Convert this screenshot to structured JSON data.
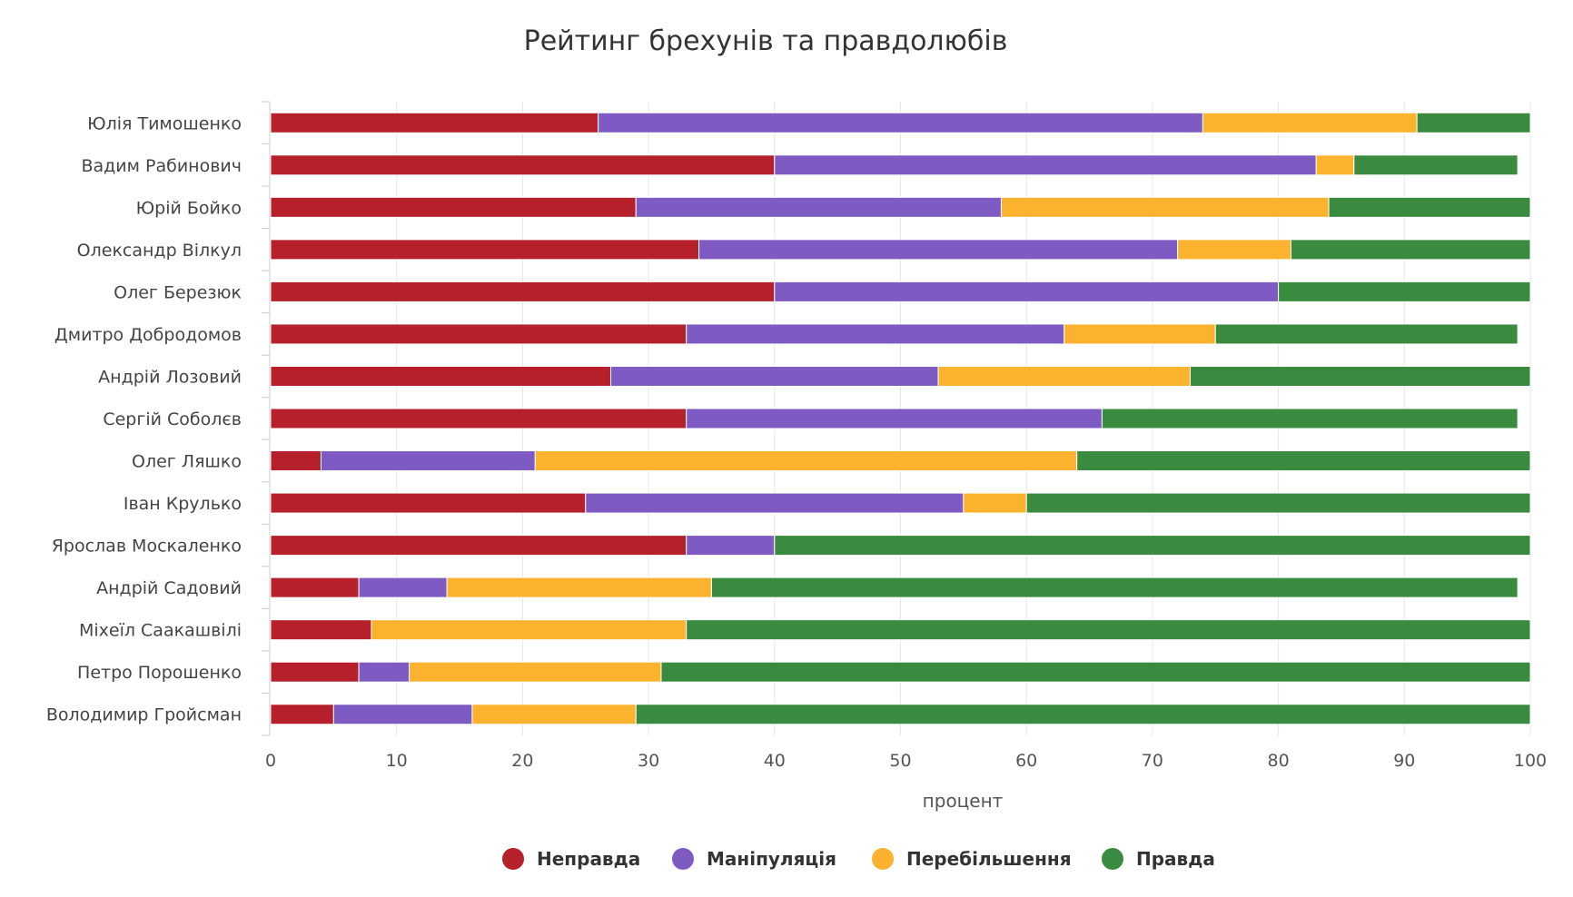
{
  "chart_data": {
    "type": "bar",
    "orientation": "horizontal",
    "stacked": true,
    "title": "Рейтинг брехунів та правдолюбів",
    "xlabel": "процент",
    "ylabel": "",
    "xlim": [
      0,
      100
    ],
    "xticks": [
      0,
      10,
      20,
      30,
      40,
      50,
      60,
      70,
      80,
      90,
      100
    ],
    "grid": true,
    "legend_position": "bottom",
    "categories": [
      "Юлія Тимошенко",
      "Вадим Рабинович",
      "Юрій Бойко",
      "Олександр Вілкул",
      "Олег Березюк",
      "Дмитро Добродомов",
      "Андрій Лозовий",
      "Сергій Соболєв",
      "Олег Ляшко",
      "Іван Крулько",
      "Ярослав Москаленко",
      "Андрій Садовий",
      "Міхеїл Саакашвілі",
      "Петро Порошенко",
      "Володимир Гройсман"
    ],
    "series": [
      {
        "name": "Неправда",
        "color": "#b5202a",
        "values": [
          26,
          40,
          29,
          34,
          40,
          33,
          27,
          33,
          4,
          25,
          33,
          7,
          8,
          7,
          5
        ]
      },
      {
        "name": "Маніпуляція",
        "color": "#7e5bc2",
        "values": [
          48,
          43,
          29,
          38,
          40,
          30,
          26,
          33,
          17,
          30,
          7,
          7,
          0,
          4,
          11
        ]
      },
      {
        "name": "Перебільшення",
        "color": "#fbb22e",
        "values": [
          17,
          3,
          26,
          9,
          0,
          12,
          20,
          0,
          43,
          5,
          0,
          21,
          25,
          20,
          13
        ]
      },
      {
        "name": "Правда",
        "color": "#3a8b3f",
        "values": [
          9,
          13,
          16,
          19,
          20,
          24,
          27,
          33,
          36,
          40,
          60,
          64,
          67,
          69,
          71
        ]
      }
    ]
  }
}
